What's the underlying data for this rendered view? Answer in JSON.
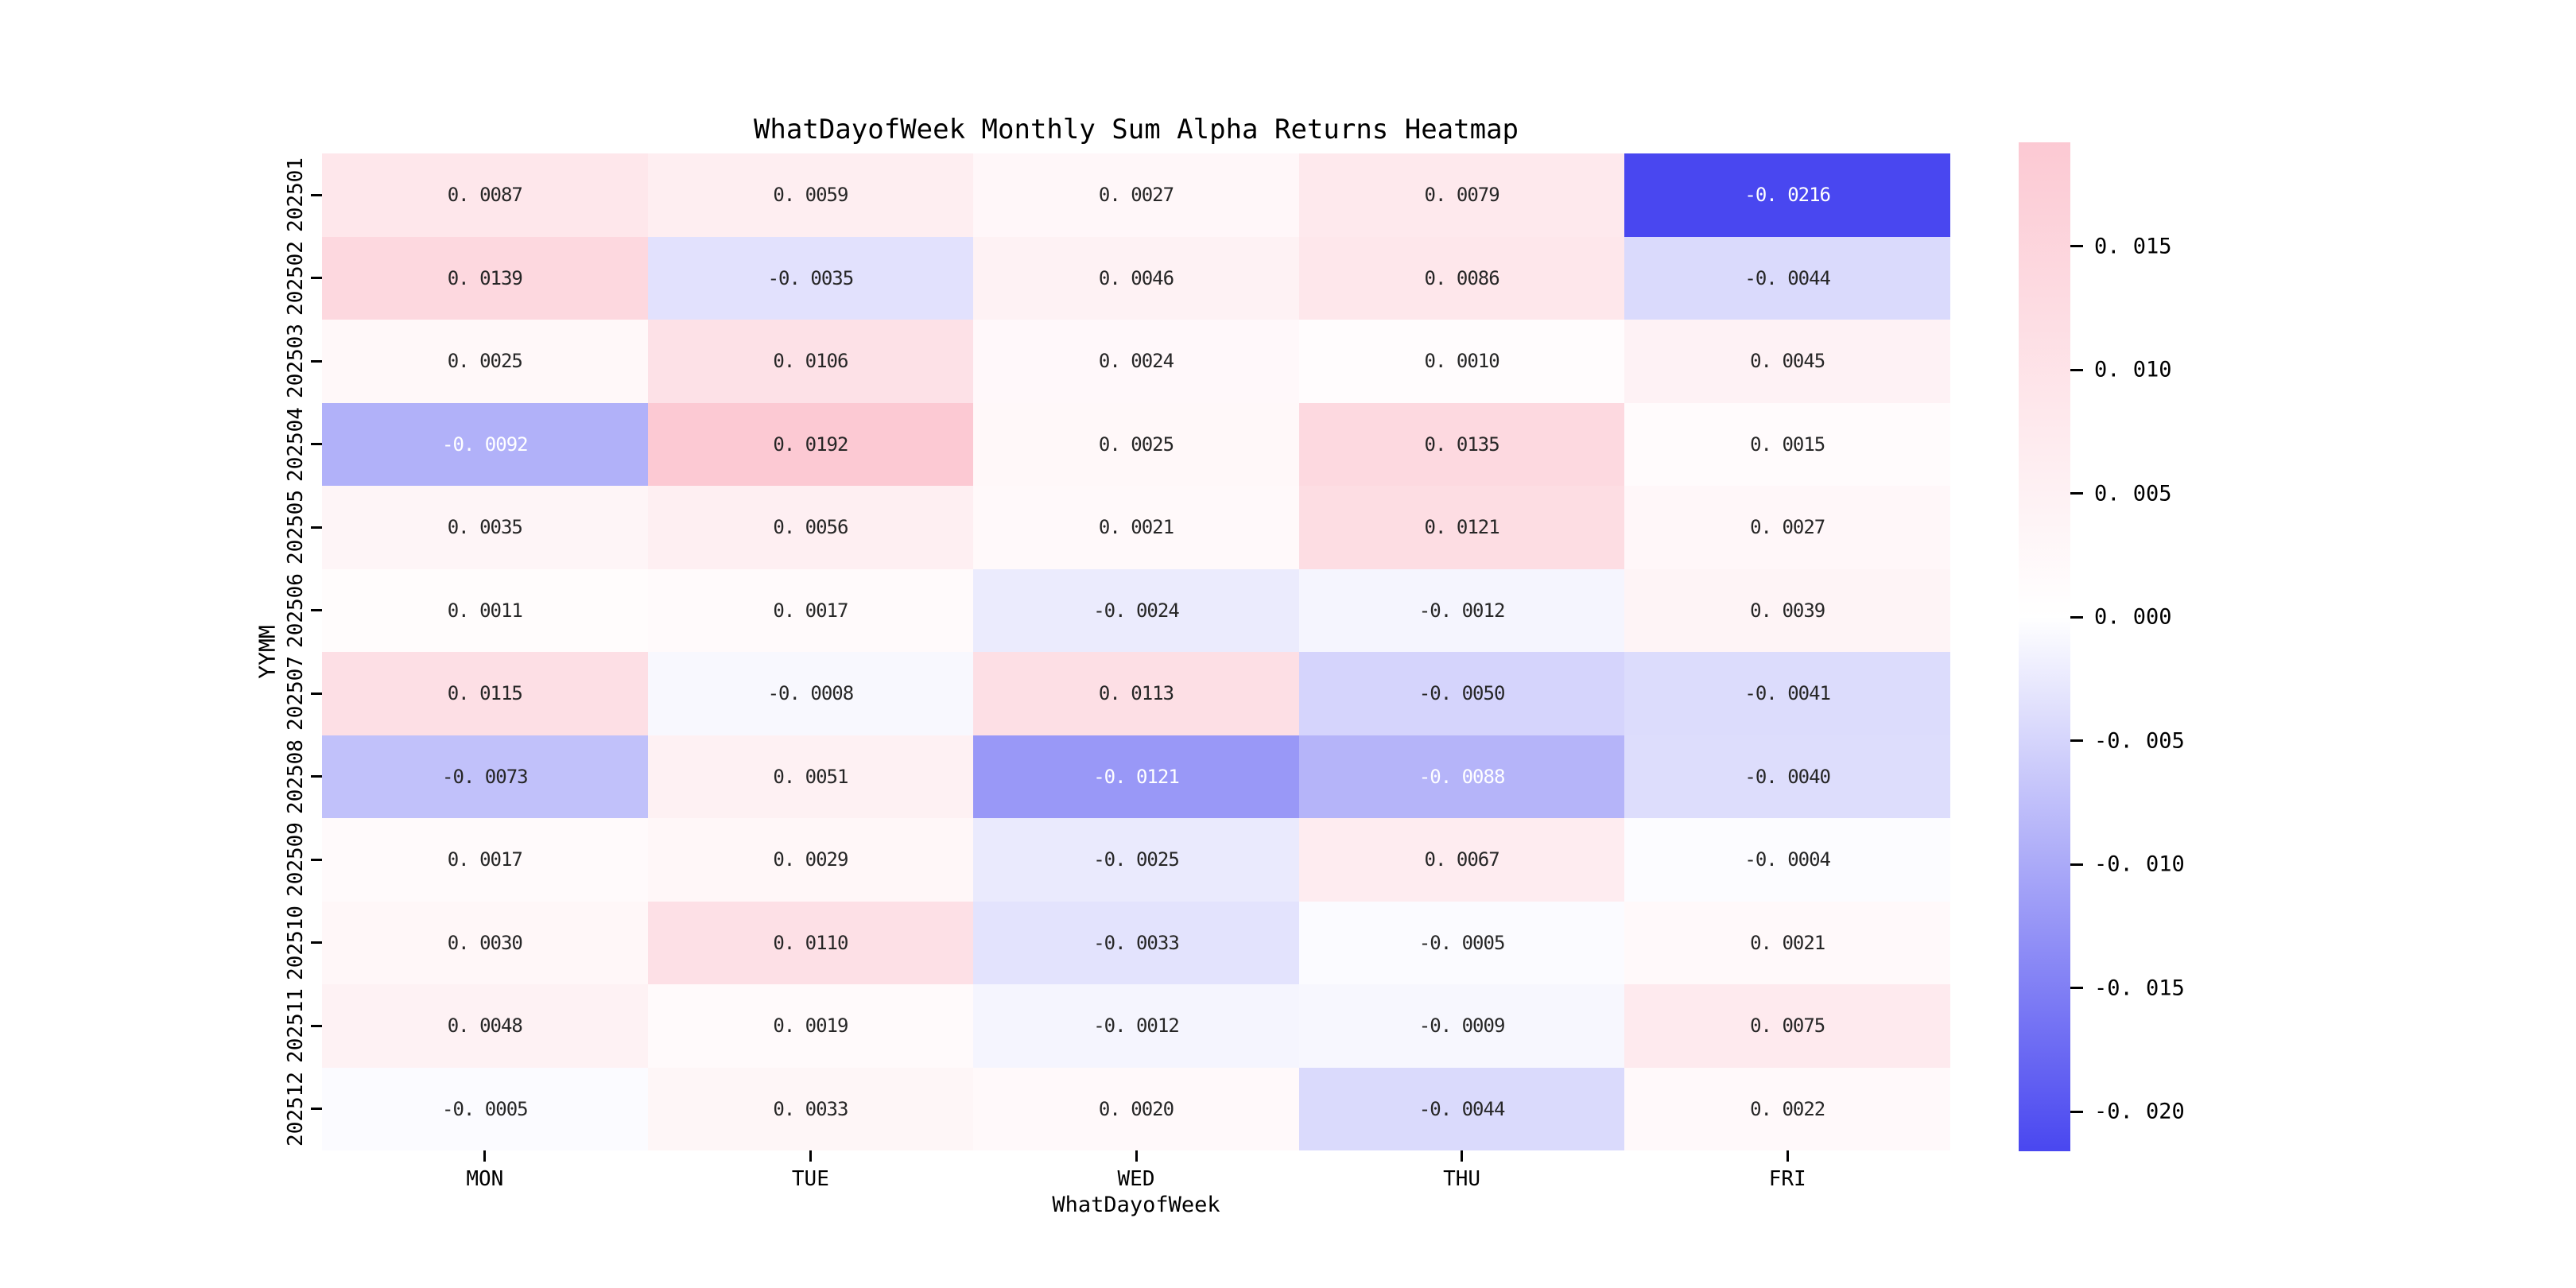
{
  "chart_data": {
    "type": "heatmap",
    "title": "WhatDayofWeek Monthly Sum Alpha Returns Heatmap",
    "xlabel": "WhatDayofWeek",
    "ylabel": "YYMM",
    "x_categories": [
      "MON",
      "TUE",
      "WED",
      "THU",
      "FRI"
    ],
    "y_categories": [
      "202501",
      "202502",
      "202503",
      "202504",
      "202505",
      "202506",
      "202507",
      "202508",
      "202509",
      "202510",
      "202511",
      "202512"
    ],
    "values": [
      [
        0.0087,
        0.0059,
        0.0027,
        0.0079,
        -0.0216
      ],
      [
        0.0139,
        -0.0035,
        0.0046,
        0.0086,
        -0.0044
      ],
      [
        0.0025,
        0.0106,
        0.0024,
        0.001,
        0.0045
      ],
      [
        -0.0092,
        0.0192,
        0.0025,
        0.0135,
        0.0015
      ],
      [
        0.0035,
        0.0056,
        0.0021,
        0.0121,
        0.0027
      ],
      [
        0.0011,
        0.0017,
        -0.0024,
        -0.0012,
        0.0039
      ],
      [
        0.0115,
        -0.0008,
        0.0113,
        -0.005,
        -0.0041
      ],
      [
        -0.0073,
        0.0051,
        -0.0121,
        -0.0088,
        -0.004
      ],
      [
        0.0017,
        0.0029,
        -0.0025,
        0.0067,
        -0.0004
      ],
      [
        0.003,
        0.011,
        -0.0033,
        -0.0005,
        0.0021
      ],
      [
        0.0048,
        0.0019,
        -0.0012,
        -0.0009,
        0.0075
      ],
      [
        -0.0005,
        0.0033,
        0.002,
        -0.0044,
        0.0022
      ]
    ],
    "vmin": -0.0216,
    "vmax": 0.0192,
    "colorbar_ticks": [
      0.015,
      0.01,
      0.005,
      0.0,
      -0.005,
      -0.01,
      -0.015,
      -0.02
    ],
    "annotation_decimals": 4,
    "colorbar_tick_decimals": 3,
    "legend_position": "right",
    "grid": false,
    "colors": {
      "max_positive": "#fcc9d3",
      "zero": "#ffffff",
      "min_negative": "#4947f0",
      "annotation_dark": "#262626",
      "annotation_light": "#ffffff",
      "axis_text": "#000000",
      "background": "#ffffff"
    },
    "white_text_threshold": -0.0085
  }
}
